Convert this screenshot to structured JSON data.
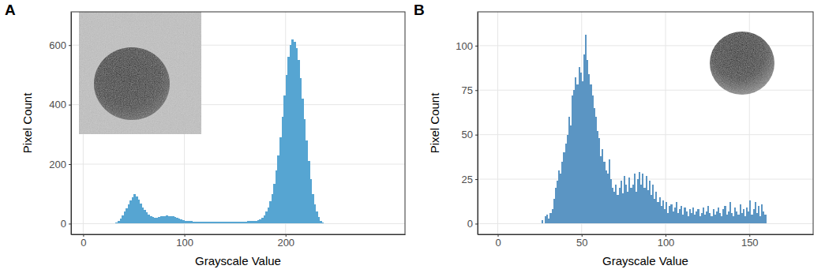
{
  "chart_data": [
    {
      "type": "histogram",
      "title": "A",
      "x_label": "Grayscale Value",
      "y_label": "Pixel Count",
      "color": "#56a5d2",
      "grid": true,
      "xlim": [
        -12,
        318
      ],
      "xticks": [
        0,
        100,
        200
      ],
      "ylim": [
        -36,
        712
      ],
      "yticks": [
        0,
        200,
        400,
        600
      ],
      "bins": [
        30,
        32,
        34,
        36,
        38,
        40,
        42,
        44,
        46,
        48,
        50,
        52,
        54,
        56,
        58,
        60,
        62,
        64,
        66,
        68,
        70,
        72,
        74,
        76,
        78,
        80,
        82,
        84,
        86,
        88,
        90,
        92,
        94,
        96,
        98,
        100,
        102,
        104,
        106,
        108,
        110,
        112,
        114,
        116,
        118,
        120,
        122,
        124,
        126,
        128,
        130,
        132,
        134,
        136,
        138,
        140,
        142,
        144,
        146,
        148,
        150,
        152,
        154,
        156,
        158,
        160,
        162,
        164,
        166,
        168,
        170,
        172,
        174,
        176,
        178,
        180,
        182,
        184,
        186,
        188,
        190,
        192,
        194,
        196,
        198,
        200,
        202,
        204,
        206,
        208,
        210,
        212,
        214,
        216,
        218,
        220,
        222,
        224,
        226,
        228,
        230,
        232,
        234,
        236,
        238
      ],
      "values": [
        2,
        5,
        10,
        18,
        28,
        40,
        52,
        65,
        78,
        88,
        98,
        92,
        80,
        68,
        55,
        45,
        38,
        30,
        25,
        22,
        20,
        21,
        22,
        24,
        25,
        26,
        27,
        26,
        25,
        24,
        22,
        20,
        17,
        15,
        12,
        10,
        9,
        8,
        8,
        7,
        7,
        6,
        7,
        6,
        6,
        7,
        6,
        6,
        7,
        6,
        6,
        6,
        7,
        6,
        6,
        7,
        6,
        7,
        7,
        6,
        7,
        7,
        6,
        7,
        7,
        7,
        8,
        8,
        9,
        9,
        10,
        12,
        15,
        20,
        28,
        40,
        55,
        75,
        100,
        135,
        180,
        230,
        290,
        360,
        430,
        500,
        560,
        600,
        620,
        610,
        590,
        550,
        490,
        420,
        350,
        280,
        210,
        150,
        100,
        65,
        40,
        22,
        10,
        4
      ]
    },
    {
      "type": "histogram",
      "title": "B",
      "x_label": "Grayscale Value",
      "y_label": "Pixel Count",
      "color": "#5b95c3",
      "grid": true,
      "xlim": [
        -12,
        188
      ],
      "xticks": [
        0,
        50,
        100,
        150
      ],
      "ylim": [
        -6,
        119
      ],
      "yticks": [
        0,
        25,
        50,
        75,
        100
      ],
      "bins": [
        26,
        27,
        28,
        29,
        30,
        31,
        32,
        33,
        34,
        35,
        36,
        37,
        38,
        39,
        40,
        41,
        42,
        43,
        44,
        45,
        46,
        47,
        48,
        49,
        50,
        51,
        52,
        53,
        54,
        55,
        56,
        57,
        58,
        59,
        60,
        61,
        62,
        63,
        64,
        65,
        66,
        67,
        68,
        69,
        70,
        71,
        72,
        73,
        74,
        75,
        76,
        77,
        78,
        79,
        80,
        81,
        82,
        83,
        84,
        85,
        86,
        87,
        88,
        89,
        90,
        91,
        92,
        93,
        94,
        95,
        96,
        97,
        98,
        99,
        100,
        101,
        102,
        103,
        104,
        105,
        106,
        107,
        108,
        109,
        110,
        111,
        112,
        113,
        114,
        115,
        116,
        117,
        118,
        119,
        120,
        121,
        122,
        123,
        124,
        125,
        126,
        127,
        128,
        129,
        130,
        131,
        132,
        133,
        134,
        135,
        136,
        137,
        138,
        139,
        140,
        141,
        142,
        143,
        144,
        145,
        146,
        147,
        148,
        149,
        150,
        151,
        152,
        153,
        154,
        155,
        156,
        157,
        158,
        159,
        160
      ],
      "values": [
        2,
        0,
        4,
        5,
        3,
        6,
        8,
        14,
        20,
        24,
        30,
        28,
        35,
        40,
        45,
        50,
        60,
        55,
        72,
        75,
        82,
        78,
        88,
        85,
        80,
        95,
        106,
        92,
        84,
        78,
        72,
        65,
        60,
        52,
        48,
        38,
        42,
        35,
        30,
        28,
        36,
        25,
        20,
        18,
        22,
        16,
        20,
        24,
        17,
        27,
        22,
        18,
        26,
        20,
        22,
        28,
        18,
        25,
        29,
        22,
        28,
        20,
        27,
        19,
        24,
        16,
        22,
        14,
        18,
        12,
        15,
        10,
        13,
        8,
        12,
        6,
        10,
        11,
        7,
        9,
        12,
        6,
        8,
        10,
        5,
        9,
        7,
        4,
        8,
        6,
        9,
        5,
        7,
        8,
        4,
        6,
        9,
        5,
        7,
        10,
        6,
        4,
        8,
        5,
        7,
        9,
        6,
        4,
        8,
        10,
        5,
        7,
        12,
        6,
        4,
        9,
        7,
        5,
        11,
        6,
        8,
        4,
        9,
        7,
        13,
        5,
        8,
        12,
        6,
        10,
        4,
        11,
        7,
        5
      ]
    }
  ]
}
